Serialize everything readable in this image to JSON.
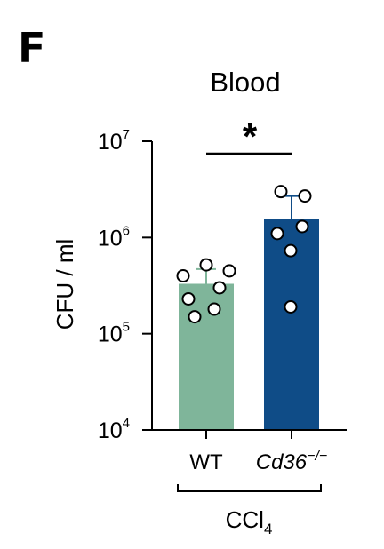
{
  "panel_letter": "F",
  "chart_data": {
    "type": "bar",
    "title": "Blood",
    "ylabel": "CFU / ml",
    "yscale": "log",
    "ylim": [
      10000,
      10000000
    ],
    "yticks": [
      {
        "value": 10000,
        "base": "10",
        "exp": "4"
      },
      {
        "value": 100000,
        "base": "10",
        "exp": "5"
      },
      {
        "value": 1000000,
        "base": "10",
        "exp": "6"
      },
      {
        "value": 10000000,
        "base": "10",
        "exp": "7"
      }
    ],
    "categories": [
      {
        "label": "WT",
        "italic": false,
        "sup": ""
      },
      {
        "label": "Cd36",
        "italic": true,
        "sup": "−/−"
      }
    ],
    "values": [
      330000,
      1550000
    ],
    "errors_upper": [
      470000,
      2700000
    ],
    "points": [
      [
        520000,
        450000,
        400000,
        300000,
        230000,
        180000,
        150000
      ],
      [
        3000000,
        2700000,
        1300000,
        1100000,
        730000,
        190000
      ]
    ],
    "bar_colors": [
      "#7fb59a",
      "#0f4c87"
    ],
    "significance": {
      "label": "*",
      "between": [
        0,
        1
      ]
    },
    "group_bracket": {
      "base": "CCl",
      "sub": "4"
    }
  }
}
